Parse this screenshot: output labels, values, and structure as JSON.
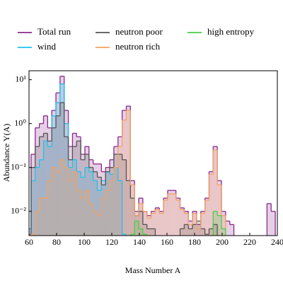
{
  "chart_data": {
    "type": "step-histogram",
    "xlabel": "Mass Number A",
    "ylabel": "Abundance Y(A)",
    "xlim": [
      60,
      240
    ],
    "xticks": [
      60,
      80,
      100,
      120,
      140,
      160,
      180,
      200,
      220,
      240
    ],
    "ylim": [
      0.0028,
      16
    ],
    "log_y": true,
    "yticks": [
      {
        "value": 0.01,
        "label": "10⁻²"
      },
      {
        "value": 0.1,
        "label": "10⁻¹"
      },
      {
        "value": 1,
        "label": "10⁰"
      },
      {
        "value": 10,
        "label": "10¹"
      }
    ],
    "legend": "top",
    "x": [
      60,
      63,
      66,
      69,
      72,
      75,
      78,
      81,
      84,
      87,
      90,
      93,
      96,
      99,
      102,
      105,
      108,
      111,
      114,
      117,
      120,
      123,
      126,
      129,
      132,
      135,
      138,
      141,
      144,
      147,
      150,
      153,
      156,
      159,
      162,
      165,
      168,
      171,
      174,
      177,
      180,
      183,
      186,
      189,
      192,
      195,
      198,
      201,
      204,
      207,
      210,
      213,
      216,
      219,
      222,
      225,
      228,
      231,
      234,
      237,
      240
    ],
    "series": [
      {
        "name": "Total run",
        "color": "#8b2a8b",
        "values": [
          0.004,
          0.2,
          0.8,
          1,
          1.5,
          0.8,
          2,
          5,
          12,
          2,
          0.3,
          0.6,
          0.5,
          0.2,
          0.3,
          0.15,
          0.12,
          0.12,
          0.08,
          0.1,
          0.15,
          0.3,
          0.5,
          2,
          2.5,
          0.05,
          0.01,
          0.02,
          0.01,
          0.008,
          0.01,
          0.012,
          0.01,
          0.02,
          0.03,
          0.03,
          0.02,
          0.012,
          0.01,
          0.006,
          0.01,
          0.005,
          0.01,
          0.02,
          0.08,
          0.3,
          0.05,
          0.01,
          0.006,
          0.005,
          null,
          null,
          null,
          null,
          null,
          null,
          null,
          null,
          0.015,
          0.01,
          null
        ]
      },
      {
        "name": "wind",
        "color": "#1ec3ee",
        "values": [
          0.004,
          0.05,
          0.1,
          0.15,
          0.4,
          0.3,
          1.5,
          3,
          8,
          1,
          0.1,
          0.15,
          0.08,
          0.06,
          0.1,
          0.08,
          0.05,
          0.03,
          0.05,
          0.08,
          0.07,
          0.1,
          0.05,
          0.003,
          null,
          null,
          null,
          null,
          null,
          null,
          null,
          null,
          null,
          null,
          null,
          null,
          null,
          null,
          null,
          null,
          null,
          null,
          null,
          null,
          null,
          null,
          null,
          null,
          null,
          null,
          null,
          null,
          null,
          null,
          null,
          null,
          null,
          null,
          null,
          null,
          null
        ]
      },
      {
        "name": "neutron poor",
        "color": "#555555",
        "values": [
          0.003,
          0.1,
          0.3,
          0.5,
          0.6,
          0.4,
          0.8,
          1.5,
          3,
          0.5,
          0.15,
          0.3,
          0.4,
          0.15,
          0.2,
          0.1,
          0.08,
          0.06,
          0.04,
          0.08,
          0.1,
          0.2,
          0.2,
          0.15,
          0.05,
          0.02,
          0.008,
          0.01,
          0.005,
          0.004,
          0.004,
          null,
          null,
          null,
          null,
          null,
          null,
          0.004,
          0.005,
          0.004,
          0.005,
          0.006,
          0.004,
          0.003,
          0.004,
          0.005,
          null,
          null,
          null,
          null,
          null,
          null,
          null,
          null,
          null,
          null,
          null,
          null,
          null,
          null,
          null
        ]
      },
      {
        "name": "neutron rich",
        "color": "#f4a261",
        "values": [
          null,
          0.003,
          0.01,
          0.02,
          0.02,
          0.05,
          0.1,
          0.08,
          0.15,
          0.1,
          0.05,
          0.08,
          0.03,
          0.02,
          0.03,
          0.015,
          0.01,
          0.008,
          0.02,
          0.03,
          0.05,
          0.1,
          0.3,
          1.2,
          2,
          0.04,
          0.008,
          0.015,
          0.01,
          0.007,
          0.009,
          0.011,
          0.009,
          0.018,
          0.025,
          0.025,
          0.018,
          0.011,
          0.009,
          0.005,
          0.009,
          0.004,
          0.009,
          0.018,
          0.07,
          0.25,
          0.04,
          0.008,
          null,
          null,
          null,
          null,
          null,
          null,
          null,
          null,
          null,
          null,
          null,
          null,
          null
        ]
      },
      {
        "name": "high entropy",
        "color": "#4ccc4c",
        "values": [
          null,
          null,
          null,
          null,
          null,
          null,
          null,
          null,
          null,
          null,
          null,
          null,
          null,
          null,
          null,
          null,
          null,
          null,
          null,
          null,
          null,
          null,
          null,
          null,
          null,
          0.003,
          0.006,
          0.004,
          0.003,
          null,
          null,
          null,
          null,
          null,
          null,
          null,
          null,
          null,
          null,
          null,
          null,
          null,
          null,
          null,
          null,
          0.01,
          0.008,
          0.004,
          null,
          null,
          null,
          null,
          null,
          null,
          null,
          null,
          null,
          null,
          null,
          null,
          null
        ]
      }
    ]
  }
}
